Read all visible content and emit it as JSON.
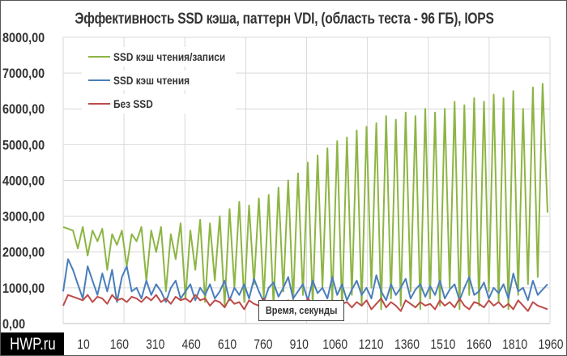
{
  "chart_data": {
    "type": "line",
    "title": "Эффективность SSD кэша, паттерн VDI, (область теста - 96 ГБ), IOPS",
    "xlabel": "Время, секунды",
    "ylabel": "",
    "xlim": [
      0,
      1990
    ],
    "ylim": [
      0,
      8000
    ],
    "y_ticks": [
      "0,00",
      "1000,00",
      "2000,00",
      "3000,00",
      "4000,00",
      "5000,00",
      "6000,00",
      "7000,00",
      "8000,00"
    ],
    "x_ticks": [
      "10",
      "160",
      "310",
      "460",
      "610",
      "760",
      "910",
      "1060",
      "1210",
      "1360",
      "1510",
      "1660",
      "1810",
      "1960"
    ],
    "grid": true,
    "legend_position": "top-left",
    "x_step": 20,
    "series": [
      {
        "name": "SSD кэш чтения/записи",
        "color": "#8db544",
        "values": [
          2700,
          2650,
          2600,
          2100,
          2700,
          1900,
          2600,
          2300,
          2650,
          1500,
          2500,
          2200,
          2600,
          1600,
          2500,
          2300,
          2700,
          1200,
          2600,
          2000,
          2700,
          900,
          2500,
          1800,
          2800,
          700,
          2600,
          1500,
          2900,
          600,
          2800,
          1200,
          3000,
          500,
          3200,
          1000,
          3400,
          600,
          3300,
          1100,
          3500,
          700,
          3600,
          500,
          3800,
          900,
          4000,
          600,
          4200,
          800,
          4500,
          500,
          4700,
          1000,
          4900,
          600,
          5100,
          400,
          5200,
          800,
          5400,
          500,
          5500,
          1000,
          5600,
          400,
          5800,
          700,
          5700,
          500,
          5900,
          900,
          5800,
          400,
          6000,
          700,
          5900,
          500,
          6000,
          1000,
          6200,
          400,
          6100,
          800,
          6300,
          500,
          6200,
          900,
          6400,
          600,
          6300,
          400,
          6500,
          800,
          6000,
          1100,
          6600,
          1300,
          6700,
          3100
        ]
      },
      {
        "name": "SSD кэш чтения",
        "color": "#4a7ebb",
        "values": [
          900,
          1800,
          1500,
          1100,
          700,
          1600,
          1200,
          800,
          1400,
          900,
          1500,
          600,
          1300,
          1600,
          900,
          1000,
          700,
          1200,
          800,
          1100,
          900,
          600,
          1000,
          1200,
          700,
          900,
          1100,
          650,
          1000,
          800,
          1100,
          700,
          900,
          1200,
          650,
          1000,
          800,
          1100,
          700,
          1250,
          900,
          600,
          1000,
          1150,
          750,
          1000,
          1300,
          700,
          900,
          1100,
          650,
          1200,
          850,
          1000,
          700,
          1300,
          800,
          1100,
          650,
          950,
          1200,
          800,
          1000,
          700,
          1350,
          900,
          650,
          1100,
          800,
          1000,
          1250,
          700,
          950,
          1100,
          750,
          1050,
          800,
          1200,
          700,
          950,
          1100,
          650,
          1000,
          1300,
          800,
          900,
          1150,
          700,
          1000,
          850,
          1100,
          700,
          1400,
          900,
          1000,
          650,
          1200,
          800,
          950,
          1100
        ]
      },
      {
        "name": "Без SSD",
        "color": "#be4b48",
        "values": [
          500,
          800,
          750,
          700,
          650,
          800,
          600,
          750,
          700,
          550,
          800,
          650,
          700,
          600,
          750,
          700,
          600,
          750,
          650,
          800,
          600,
          700,
          550,
          750,
          650,
          700,
          600,
          800,
          650,
          700,
          500,
          650,
          600,
          450,
          700,
          550,
          600,
          400,
          650,
          550,
          500,
          700,
          450,
          600,
          550,
          450,
          650,
          500,
          600,
          400,
          700,
          550,
          450,
          600,
          500,
          650,
          400,
          550,
          600,
          450,
          600,
          500,
          650,
          400,
          550,
          700,
          450,
          600,
          500,
          350,
          650,
          550,
          450,
          600,
          500,
          550,
          400,
          650,
          500,
          600,
          450,
          700,
          500,
          400,
          600,
          550,
          450,
          650,
          500,
          600,
          450,
          550,
          400,
          650,
          500,
          350,
          600,
          500,
          450,
          400
        ]
      }
    ]
  },
  "watermark": "HWP.ru",
  "colors": {
    "grid": "#d9d9d9",
    "text": "#333333"
  }
}
